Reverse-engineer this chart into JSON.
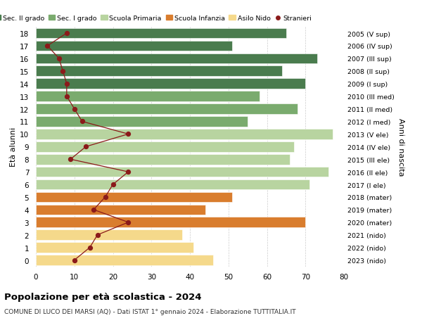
{
  "ages": [
    18,
    17,
    16,
    15,
    14,
    13,
    12,
    11,
    10,
    9,
    8,
    7,
    6,
    5,
    4,
    3,
    2,
    1,
    0
  ],
  "years": [
    "2005 (V sup)",
    "2006 (IV sup)",
    "2007 (III sup)",
    "2008 (II sup)",
    "2009 (I sup)",
    "2010 (III med)",
    "2011 (II med)",
    "2012 (I med)",
    "2013 (V ele)",
    "2014 (IV ele)",
    "2015 (III ele)",
    "2016 (II ele)",
    "2017 (I ele)",
    "2018 (mater)",
    "2019 (mater)",
    "2020 (mater)",
    "2021 (nido)",
    "2022 (nido)",
    "2023 (nido)"
  ],
  "bar_values": [
    65,
    51,
    73,
    64,
    70,
    58,
    68,
    55,
    77,
    67,
    66,
    76,
    71,
    51,
    44,
    70,
    38,
    41,
    46
  ],
  "bar_colors": [
    "#4a7c4e",
    "#4a7c4e",
    "#4a7c4e",
    "#4a7c4e",
    "#4a7c4e",
    "#7aab6e",
    "#7aab6e",
    "#7aab6e",
    "#b8d4a0",
    "#b8d4a0",
    "#b8d4a0",
    "#b8d4a0",
    "#b8d4a0",
    "#d97d2e",
    "#d97d2e",
    "#d97d2e",
    "#f5d98b",
    "#f5d98b",
    "#f5d98b"
  ],
  "stranieri_values": [
    8,
    3,
    6,
    7,
    8,
    8,
    10,
    12,
    24,
    13,
    9,
    24,
    20,
    18,
    15,
    24,
    16,
    14,
    10
  ],
  "legend_labels": [
    "Sec. II grado",
    "Sec. I grado",
    "Scuola Primaria",
    "Scuola Infanzia",
    "Asilo Nido",
    "Stranieri"
  ],
  "legend_colors": [
    "#4a7c4e",
    "#7aab6e",
    "#b8d4a0",
    "#d97d2e",
    "#f5d98b",
    "#8b1a1a"
  ],
  "title": "Popolazione per età scolastica - 2024",
  "subtitle": "COMUNE DI LUCO DEI MARSI (AQ) - Dati ISTAT 1° gennaio 2024 - Elaborazione TUTTITALIA.IT",
  "ylabel_left": "Età alunni",
  "ylabel_right": "Anni di nascita",
  "xlim": [
    0,
    80
  ],
  "xticks": [
    0,
    10,
    20,
    30,
    40,
    50,
    60,
    70,
    80
  ],
  "bg_color": "#ffffff",
  "grid_color": "#cccccc",
  "figwidth": 6.0,
  "figheight": 4.6,
  "dpi": 100
}
